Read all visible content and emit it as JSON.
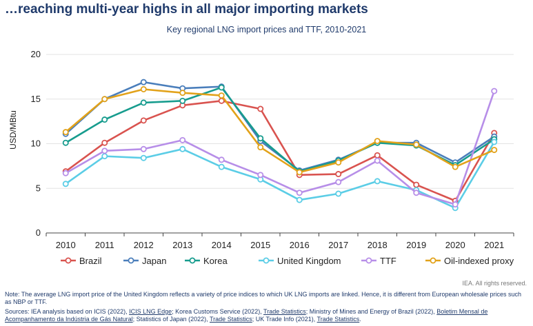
{
  "headline": "…reaching multi-year highs in all major importing markets",
  "chart_data": {
    "type": "line",
    "title": "Key regional LNG import prices and TTF, 2010-2021",
    "ylabel": "USD/MBtu",
    "xlabel": "",
    "x": [
      "2010",
      "2011",
      "2012",
      "2013",
      "2014",
      "2015",
      "2016",
      "2017",
      "2018",
      "2019",
      "2020",
      "2021"
    ],
    "ylim": [
      0,
      20
    ],
    "yticks": [
      0,
      5,
      10,
      15,
      20
    ],
    "grid": "horizontal",
    "legend_position": "bottom",
    "series": [
      {
        "name": "Brazil",
        "color": "#d9534f",
        "values": [
          6.9,
          10.1,
          12.6,
          14.3,
          14.8,
          13.9,
          6.5,
          6.6,
          8.7,
          5.4,
          3.6,
          11.2
        ]
      },
      {
        "name": "Japan",
        "color": "#4a7ebb",
        "values": [
          11.1,
          15.0,
          16.9,
          16.2,
          16.4,
          10.3,
          7.0,
          8.2,
          10.1,
          10.1,
          7.9,
          10.8
        ]
      },
      {
        "name": "Korea",
        "color": "#179c8e",
        "values": [
          10.1,
          12.7,
          14.6,
          14.8,
          16.3,
          10.6,
          6.9,
          8.1,
          10.1,
          9.8,
          7.6,
          10.5
        ]
      },
      {
        "name": "United Kingdom",
        "color": "#5bcde6",
        "values": [
          5.5,
          8.6,
          8.4,
          9.4,
          7.4,
          6.0,
          3.7,
          4.4,
          5.8,
          4.8,
          2.8,
          10.2
        ]
      },
      {
        "name": "TTF",
        "color": "#b78ee8",
        "values": [
          6.7,
          9.2,
          9.4,
          10.4,
          8.2,
          6.5,
          4.5,
          5.7,
          8.1,
          4.5,
          3.2,
          15.9
        ]
      },
      {
        "name": "Oil-indexed proxy",
        "color": "#e2a21a",
        "values": [
          11.3,
          15.0,
          16.1,
          15.7,
          15.4,
          9.6,
          6.8,
          7.9,
          10.3,
          9.9,
          7.4,
          9.3
        ]
      }
    ]
  },
  "footer": {
    "credit": "IEA. All rights reserved.",
    "note": "Note: The average LNG import price of the United Kingdom reflects a variety of price indices to which UK LNG imports are linked. Hence, it is different from European wholesale prices such as NBP or TTF.",
    "sources": [
      {
        "text": "Sources: IEA analysis based on ICIS (2022), ",
        "link": false
      },
      {
        "text": "ICIS LNG Edge",
        "link": true
      },
      {
        "text": "; Korea Customs Service (2022), ",
        "link": false
      },
      {
        "text": "Trade Statistics",
        "link": true
      },
      {
        "text": "; Ministry of Mines and Energy of Brazil (2022), ",
        "link": false
      },
      {
        "text": "Boletim Mensal de Acompanhamento da Indústria de Gás Natural",
        "link": true
      },
      {
        "text": "; Statistics of Japan (2022), ",
        "link": false
      },
      {
        "text": "Trade Statistics",
        "link": true
      },
      {
        "text": "; UK Trade Info (2021), ",
        "link": false
      },
      {
        "text": "Trade Statistics",
        "link": true
      },
      {
        "text": ".",
        "link": false
      }
    ]
  }
}
